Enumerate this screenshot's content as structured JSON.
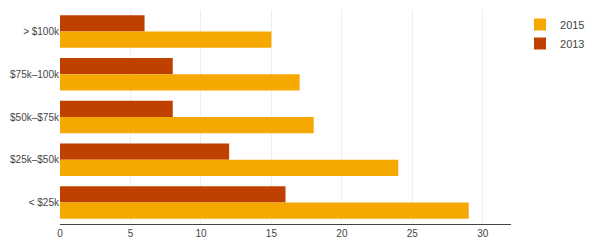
{
  "chart_data": {
    "type": "bar",
    "orientation": "horizontal",
    "categories": [
      "> $100k",
      "$75k–100k",
      "$50k–$75k",
      "$25k–$50k",
      "< $25k"
    ],
    "series": [
      {
        "name": "2015",
        "color": "#F5A800",
        "values": [
          15,
          17,
          18,
          24,
          29
        ]
      },
      {
        "name": "2013",
        "color": "#C04000",
        "values": [
          6,
          8,
          8,
          12,
          16
        ]
      }
    ],
    "xlim": [
      0,
      32
    ],
    "xticks": [
      0,
      5,
      10,
      15,
      20,
      25,
      30
    ],
    "grid": true,
    "legend": "upper right"
  }
}
